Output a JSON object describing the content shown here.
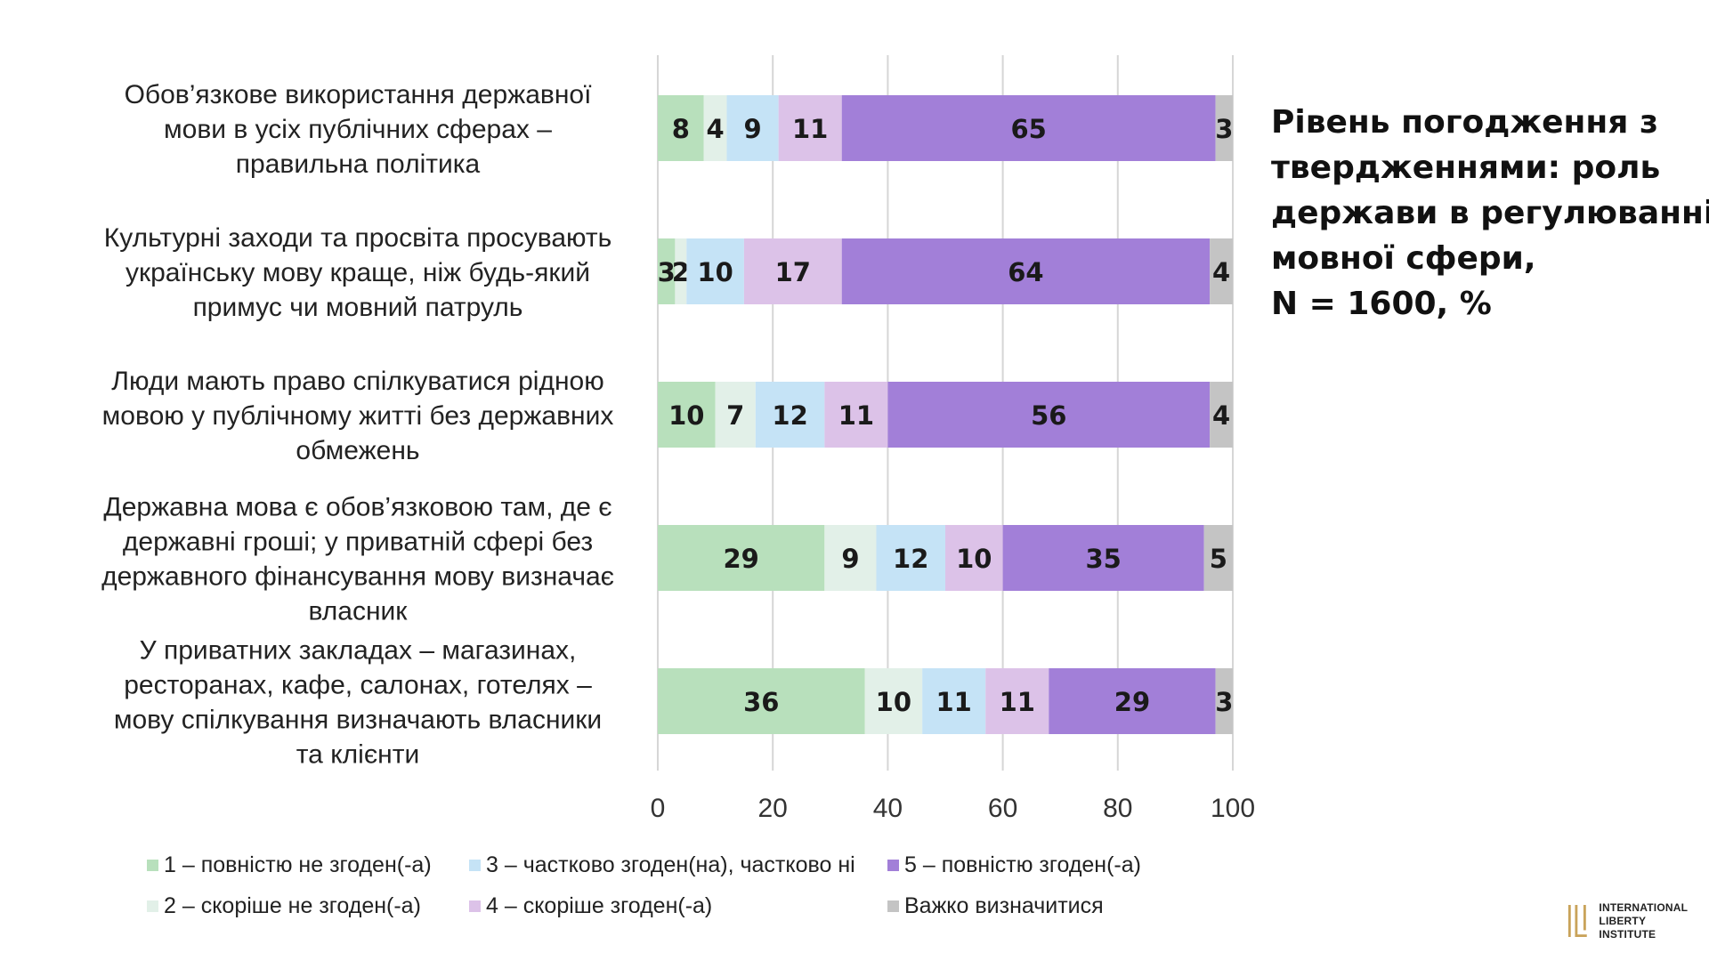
{
  "chart_data": {
    "type": "bar",
    "orientation": "horizontal",
    "stacked": true,
    "title_lines": [
      "Рівень погодження з",
      "твердженнями: роль",
      "держави в регулюванні",
      "мовної сфери,",
      "N = 1600, %"
    ],
    "categories": [
      [
        "Обов’язкове використання державної",
        "мови в усіх публічних сферах –",
        "правильна політика"
      ],
      [
        "Культурні заходи та просвіта просувають",
        "українську мову краще, ніж будь-який",
        "примус чи мовний патруль"
      ],
      [
        "Люди мають право спілкуватися рідною",
        "мовою у публічному житті без державних",
        "обмежень"
      ],
      [
        "Державна мова є обов’язковою там, де є",
        "державні гроші; у приватній сфері без",
        "державного фінансування мову визначає",
        "власник"
      ],
      [
        "У приватних закладах – магазинах,",
        "ресторанах, кафе, салонах, готелях –",
        "мову спілкування визначають власники",
        "та клієнти"
      ]
    ],
    "series": [
      {
        "name": "1 – повністю не згоден(-а)",
        "color": "#b8e0bc",
        "values": [
          8,
          3,
          10,
          29,
          36
        ]
      },
      {
        "name": "2 – скоріше не згоден(-а)",
        "color": "#e2f0e8",
        "values": [
          4,
          2,
          7,
          9,
          10
        ]
      },
      {
        "name": "3 – частково згоден(на), частково ні",
        "color": "#c5e3f6",
        "values": [
          9,
          10,
          12,
          12,
          11
        ]
      },
      {
        "name": "4 – скоріше згоден(-а)",
        "color": "#dcc2e8",
        "values": [
          11,
          17,
          11,
          10,
          11
        ]
      },
      {
        "name": "5 – повністю згоден(-а)",
        "color": "#a27fd8",
        "values": [
          65,
          64,
          56,
          35,
          29
        ]
      },
      {
        "name": "Важко визначитися",
        "color": "#c4c4c4",
        "values": [
          3,
          4,
          4,
          5,
          3
        ]
      }
    ],
    "xlim": [
      0,
      100
    ],
    "xticks": [
      "0",
      "20",
      "40",
      "60",
      "80",
      "100"
    ],
    "grid": true,
    "legend_position": "bottom"
  },
  "logo": {
    "line1": "INTERNATIONAL",
    "line2": "LIBERTY INSTITUTE"
  }
}
